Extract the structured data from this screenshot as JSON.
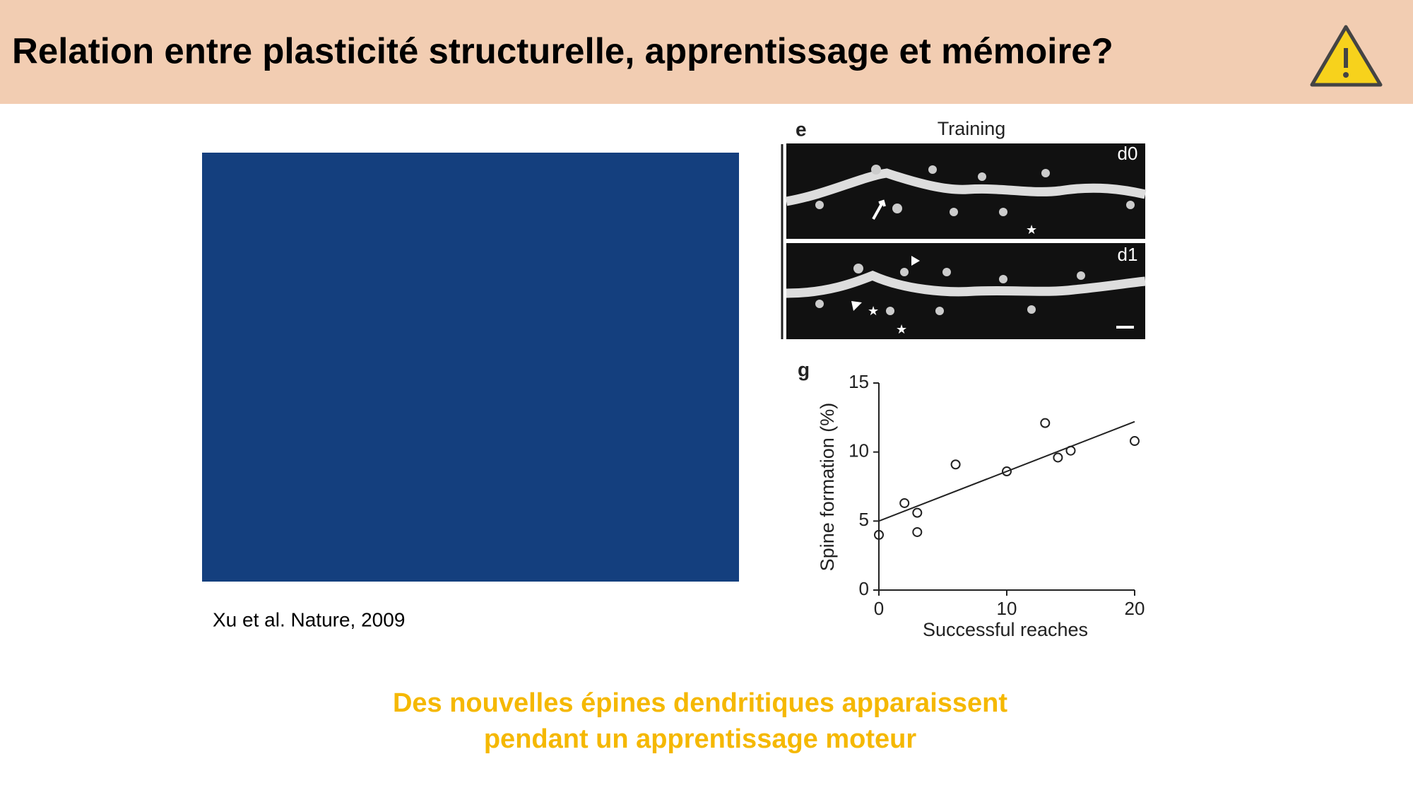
{
  "header": {
    "title": "Relation entre plasticité structurelle, apprentissage et mémoire?"
  },
  "citation": "Xu et al. Nature, 2009",
  "caption": [
    "Des nouvelles épines dendritiques apparaissent",
    "pendant un apprentissage moteur"
  ],
  "panel_e": {
    "label": "e",
    "title": "Training",
    "images": [
      "d0",
      "d1"
    ]
  },
  "chart_data": {
    "type": "scatter",
    "panel_label": "g",
    "x_label": "Successful reaches",
    "y_label": "Spine formation (%)",
    "x": [
      0,
      2,
      3,
      3,
      6,
      10,
      13,
      14,
      15,
      20
    ],
    "y": [
      4.0,
      6.3,
      5.6,
      4.2,
      9.1,
      8.6,
      12.1,
      9.6,
      10.1,
      10.8
    ],
    "fit": {
      "x": [
        0,
        20
      ],
      "y": [
        5.0,
        12.2
      ]
    },
    "xlim": [
      0,
      20
    ],
    "ylim": [
      0,
      15
    ],
    "xticks": [
      0,
      10,
      20
    ],
    "yticks": [
      0,
      5,
      10,
      15
    ]
  }
}
